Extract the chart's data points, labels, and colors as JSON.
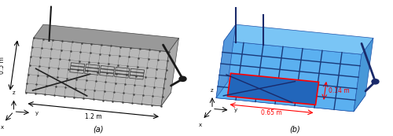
{
  "fig_width": 5.0,
  "fig_height": 1.73,
  "dpi": 100,
  "bg_color": "#ffffff",
  "panel_a": {
    "label": "(a)",
    "dim_label_height": "0.5 m",
    "dim_label_width": "1.2 m"
  },
  "panel_b": {
    "label": "(b)",
    "dim_label_1": "0.14 m",
    "dim_label_2": "0.65 m",
    "dim_color": "#ff0000"
  }
}
